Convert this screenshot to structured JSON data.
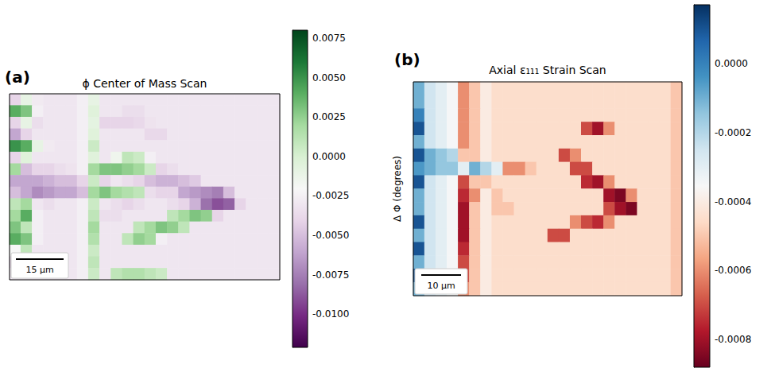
{
  "chart_data": [
    {
      "type": "heatmap",
      "panel": "(a)",
      "title": "ϕ Center of Mass Scan",
      "scale_bar": "15 µm",
      "tick_labels": false,
      "color_range": [
        -0.0121,
        0.008
      ],
      "color_ticks": [
        {
          "value": 0.0075,
          "label": "0.0075"
        },
        {
          "value": 0.005,
          "label": "0.0050"
        },
        {
          "value": 0.0025,
          "label": "0.0025"
        },
        {
          "value": 0,
          "label": "0.0000"
        },
        -0.0025,
        {
          "value": -0.005,
          "label": "-0.0050"
        },
        -0.0075,
        {
          "value": -0.01,
          "label": "-0.0100"
        }
      ],
      "color": [
        "#40004b",
        "#762a83",
        "#9970ab",
        "#c2a5cf",
        "#e7d4e8",
        "#f7f7f7",
        "#d9f0d3",
        "#a6dba0",
        "#5aae61",
        "#1b7837",
        "#00441b"
      ],
      "cells": [
        [
          -0.004,
          -0.001,
          -0.0028,
          -0.003,
          -0.003,
          -0.003,
          -0.0025,
          -0.001,
          -0.003,
          -0.003,
          -0.003,
          -0.003,
          -0.003,
          -0.003,
          -0.003,
          -0.003,
          -0.003,
          -0.003,
          -0.003,
          -0.003,
          -0.003,
          -0.003,
          -0.003,
          -0.003
        ],
        [
          0.004,
          0.003,
          -0.0025,
          -0.003,
          -0.003,
          -0.003,
          -0.0025,
          -0.0005,
          -0.003,
          -0.003,
          -0.0035,
          -0.0035,
          -0.003,
          -0.003,
          -0.003,
          -0.003,
          -0.003,
          -0.003,
          -0.003,
          -0.003,
          -0.003,
          -0.003,
          -0.003,
          -0.003
        ],
        [
          -0.004,
          -0.001,
          -0.0035,
          -0.003,
          -0.003,
          -0.003,
          -0.0025,
          -0.0008,
          -0.004,
          -0.004,
          -0.004,
          -0.0038,
          -0.0032,
          -0.003,
          -0.003,
          -0.003,
          -0.003,
          -0.003,
          -0.003,
          -0.003,
          -0.003,
          -0.003,
          -0.003,
          -0.003
        ],
        [
          -0.006,
          -0.004,
          -0.003,
          -0.003,
          -0.003,
          -0.003,
          -0.0025,
          -0.0005,
          -0.003,
          -0.003,
          -0.003,
          -0.003,
          -0.0038,
          -0.0038,
          -0.003,
          -0.003,
          -0.003,
          -0.003,
          -0.003,
          -0.003,
          -0.003,
          -0.003,
          -0.003,
          -0.003
        ],
        [
          0.005,
          0.004,
          -0.001,
          -0.0028,
          -0.003,
          -0.003,
          -0.0025,
          0.0005,
          -0.003,
          -0.003,
          -0.003,
          -0.003,
          -0.003,
          -0.003,
          -0.003,
          -0.003,
          -0.003,
          -0.003,
          -0.003,
          -0.003,
          -0.003,
          -0.003,
          -0.003,
          -0.003
        ],
        [
          -0.004,
          -0.0005,
          -0.003,
          -0.003,
          -0.003,
          -0.003,
          -0.0025,
          -0.0005,
          -0.003,
          -0.0015,
          0.001,
          0.0005,
          -0.0025,
          -0.003,
          -0.003,
          -0.003,
          -0.003,
          -0.003,
          -0.003,
          -0.003,
          -0.003,
          -0.003,
          -0.003,
          -0.003
        ],
        [
          0.002,
          -0.005,
          -0.004,
          -0.004,
          -0.0035,
          -0.0032,
          -0.0025,
          0.002,
          0.003,
          0.003,
          0.0025,
          0.002,
          0.0005,
          -0.004,
          -0.0035,
          -0.003,
          -0.003,
          -0.003,
          -0.003,
          -0.003,
          -0.003,
          -0.003,
          -0.003,
          -0.003
        ],
        [
          -0.006,
          -0.006,
          -0.006,
          -0.0055,
          -0.005,
          -0.005,
          -0.004,
          0.0005,
          -0.004,
          -0.003,
          -0.0035,
          -0.004,
          -0.005,
          -0.0055,
          -0.0055,
          -0.005,
          -0.0045,
          -0.003,
          -0.003,
          -0.003,
          -0.003,
          -0.003,
          -0.003,
          -0.003
        ],
        [
          -0.005,
          -0.006,
          -0.007,
          -0.0065,
          -0.006,
          -0.006,
          -0.005,
          0.002,
          0.003,
          0.002,
          0.0015,
          0.001,
          -0.0035,
          -0.004,
          -0.004,
          -0.006,
          -0.0065,
          -0.007,
          -0.0075,
          -0.005,
          -0.003,
          -0.003,
          -0.003,
          -0.003
        ],
        [
          0.001,
          0.002,
          -0.003,
          -0.0035,
          -0.003,
          -0.003,
          -0.0025,
          0.0005,
          -0.003,
          -0.0035,
          -0.004,
          -0.0035,
          -0.003,
          -0.003,
          -0.0035,
          -0.004,
          -0.0055,
          -0.008,
          -0.009,
          -0.0085,
          -0.004,
          -0.003,
          -0.003,
          -0.003
        ],
        [
          0.002,
          0.004,
          -0.0025,
          -0.003,
          -0.003,
          -0.003,
          -0.0025,
          0.001,
          -0.0035,
          -0.0035,
          -0.003,
          -0.003,
          -0.003,
          -0.003,
          0.001,
          0.002,
          0.003,
          0.0025,
          -0.004,
          -0.003,
          -0.003,
          -0.003,
          -0.003,
          -0.003
        ],
        [
          0.003,
          0.001,
          -0.0025,
          -0.003,
          -0.003,
          -0.003,
          -0.0025,
          0.002,
          -0.003,
          -0.003,
          -0.003,
          0.001,
          0.002,
          0.003,
          0.0025,
          0.001,
          -0.003,
          -0.003,
          -0.003,
          -0.003,
          -0.003,
          -0.003,
          -0.003,
          -0.003
        ],
        [
          0.004,
          0.003,
          -0.0025,
          -0.003,
          -0.003,
          -0.003,
          -0.0025,
          0.0015,
          -0.003,
          -0.003,
          0.001,
          0.0025,
          0.002,
          -0.0025,
          -0.003,
          -0.003,
          -0.003,
          -0.003,
          -0.003,
          -0.003,
          -0.003,
          -0.003,
          -0.003,
          -0.003
        ],
        [
          -0.002,
          0.001,
          -0.003,
          -0.003,
          -0.003,
          -0.003,
          -0.0025,
          0.0005,
          -0.003,
          -0.003,
          -0.003,
          -0.003,
          -0.003,
          -0.003,
          -0.003,
          -0.003,
          -0.003,
          -0.003,
          -0.003,
          -0.003,
          -0.003,
          -0.003,
          -0.003,
          -0.003
        ],
        [
          -0.004,
          -0.002,
          -0.003,
          -0.003,
          -0.003,
          -0.003,
          -0.0025,
          0.001,
          -0.003,
          -0.003,
          -0.003,
          -0.003,
          -0.003,
          -0.003,
          -0.003,
          -0.003,
          -0.003,
          -0.003,
          -0.003,
          -0.003,
          -0.003,
          -0.003,
          -0.003,
          -0.003
        ],
        [
          -0.003,
          -0.003,
          -0.003,
          -0.003,
          -0.003,
          -0.003,
          -0.0025,
          0.0005,
          -0.003,
          0.001,
          0.0015,
          0.0015,
          0.001,
          0.0005,
          -0.003,
          -0.003,
          -0.003,
          -0.003,
          -0.003,
          -0.003,
          -0.003,
          -0.003,
          -0.003,
          -0.003
        ]
      ]
    },
    {
      "type": "heatmap",
      "panel": "(b)",
      "title": "Axial ε₁₁₁ Strain Scan",
      "ylabel": "Δ Φ (degrees)",
      "scale_bar": "10 µm",
      "tick_labels": false,
      "color_range": [
        -0.00088,
        0.00017
      ],
      "color_ticks": [
        {
          "value": 0,
          "label": "0.0000"
        },
        -0.0002,
        -0.0004,
        -0.0006,
        -0.0008
      ],
      "color": [
        "#67001f",
        "#b2182b",
        "#d6604d",
        "#f4a582",
        "#fddbc7",
        "#f7f7f7",
        "#d1e5f0",
        "#92c5de",
        "#4393c3",
        "#2166ac",
        "#053061"
      ],
      "cells": [
        [
          -0.0001,
          -0.00025,
          -0.0003,
          -0.00035,
          -0.0006,
          -0.0005,
          -0.0004,
          -0.00045,
          -0.00045,
          -0.00045,
          -0.00045,
          -0.00045,
          -0.00045,
          -0.00045,
          -0.00045,
          -0.00045,
          -0.00045,
          -0.00045,
          -0.00045,
          -0.00045,
          -0.00045,
          -0.00045,
          -0.00045,
          -0.0005
        ],
        [
          -0.0001,
          -0.00025,
          -0.0003,
          -0.00035,
          -0.0006,
          -0.0005,
          -0.0004,
          -0.00045,
          -0.00045,
          -0.00045,
          -0.00045,
          -0.00045,
          -0.00045,
          -0.00045,
          -0.00045,
          -0.00045,
          -0.00045,
          -0.00045,
          -0.00045,
          -0.00045,
          -0.00045,
          -0.00045,
          -0.00045,
          -0.0005
        ],
        [
          0,
          -0.00025,
          -0.0003,
          -0.00035,
          -0.0006,
          -0.0005,
          -0.0004,
          -0.00045,
          -0.00045,
          -0.00045,
          -0.00045,
          -0.00045,
          -0.00045,
          -0.00045,
          -0.00045,
          -0.00045,
          -0.00045,
          -0.00045,
          -0.00045,
          -0.00045,
          -0.00045,
          -0.00045,
          -0.00045,
          -0.0005
        ],
        [
          0.0001,
          -0.00025,
          -0.0003,
          -0.00035,
          -0.0006,
          -0.0005,
          -0.0004,
          -0.00045,
          -0.00045,
          -0.00045,
          -0.00045,
          -0.00045,
          -0.00045,
          -0.00045,
          -0.00045,
          -0.0007,
          -0.0008,
          -0.0006,
          -0.00045,
          -0.00045,
          -0.00045,
          -0.00045,
          -0.00045,
          -0.0005
        ],
        [
          -0.0001,
          -0.00025,
          -0.0003,
          -0.00035,
          -0.0006,
          -0.0005,
          -0.0004,
          -0.00045,
          -0.00045,
          -0.00045,
          -0.00045,
          -0.00045,
          -0.00045,
          -0.00045,
          -0.00045,
          -0.00045,
          -0.00045,
          -0.00045,
          -0.00045,
          -0.00045,
          -0.00045,
          -0.00045,
          -0.00045,
          -0.0005
        ],
        [
          0.0001,
          -0.0001,
          -0.00015,
          -0.0002,
          -0.0005,
          -0.0005,
          -0.0004,
          -0.00045,
          -0.00045,
          -0.00045,
          -0.00045,
          -0.00045,
          -0.00045,
          -0.0007,
          -0.0006,
          -0.00045,
          -0.00045,
          -0.00045,
          -0.00045,
          -0.00045,
          -0.00045,
          -0.00045,
          -0.00045,
          -0.0005
        ],
        [
          -5e-05,
          -0.0001,
          -0.00015,
          -0.00015,
          -0.0003,
          -0.0001,
          -0.0002,
          -0.0003,
          -0.0006,
          -0.0006,
          -0.0005,
          -0.00045,
          -0.00045,
          -0.00045,
          -0.0007,
          -0.0007,
          -0.00045,
          -0.00045,
          -0.00045,
          -0.00045,
          -0.00045,
          -0.00045,
          -0.00045,
          -0.0005
        ],
        [
          0.0001,
          -0.00025,
          -0.0003,
          -0.00035,
          -0.0007,
          -0.0005,
          -0.0005,
          -0.00045,
          -0.00045,
          -0.00045,
          -0.00045,
          -0.00045,
          -0.00045,
          -0.00045,
          -0.00045,
          -0.00075,
          -0.0008,
          -0.0006,
          -0.00045,
          -0.00045,
          -0.00045,
          -0.00045,
          -0.00045,
          -0.0005
        ],
        [
          -0.0001,
          -0.00025,
          -0.0003,
          -0.00035,
          -0.00075,
          -0.0006,
          -0.0004,
          -0.0005,
          -0.00045,
          -0.00045,
          -0.00045,
          -0.00045,
          -0.00045,
          -0.00045,
          -0.00045,
          -0.00045,
          -0.00045,
          -0.0008,
          -0.00085,
          -0.0006,
          -0.00045,
          -0.00045,
          -0.00045,
          -0.0005
        ],
        [
          -0.0001,
          -0.00025,
          -0.0003,
          -0.00035,
          -0.0008,
          -0.0005,
          -0.0004,
          -0.0005,
          -0.0005,
          -0.00045,
          -0.00045,
          -0.00045,
          -0.00045,
          -0.00045,
          -0.00045,
          -0.00045,
          -0.00045,
          -0.0007,
          -0.0008,
          -0.00085,
          -0.00045,
          -0.00045,
          -0.00045,
          -0.0005
        ],
        [
          0.0001,
          -0.00025,
          -0.0003,
          -0.00035,
          -0.0008,
          -0.0005,
          -0.0004,
          -0.00045,
          -0.00045,
          -0.00045,
          -0.00045,
          -0.00045,
          -0.00045,
          -0.00045,
          -0.0006,
          -0.0007,
          -0.00075,
          -0.0006,
          -0.00045,
          -0.00045,
          -0.00045,
          -0.00045,
          -0.00045,
          -0.0005
        ],
        [
          -0.0001,
          -0.00025,
          -0.0003,
          -0.00035,
          -0.0008,
          -0.0005,
          -0.0004,
          -0.00045,
          -0.00045,
          -0.00045,
          -0.00045,
          -0.00045,
          -0.0007,
          -0.0007,
          -0.00045,
          -0.00045,
          -0.00045,
          -0.00045,
          -0.00045,
          -0.00045,
          -0.00045,
          -0.00045,
          -0.00045,
          -0.0005
        ],
        [
          0.0001,
          -0.00025,
          -0.0003,
          -0.00035,
          -0.00075,
          -0.0005,
          -0.0004,
          -0.00045,
          -0.00045,
          -0.00045,
          -0.00045,
          -0.00045,
          -0.00045,
          -0.00045,
          -0.00045,
          -0.00045,
          -0.00045,
          -0.00045,
          -0.00045,
          -0.00045,
          -0.00045,
          -0.00045,
          -0.00045,
          -0.0005
        ],
        [
          -0.0001,
          -0.00025,
          -0.0003,
          -0.00035,
          -0.0007,
          -0.0005,
          -0.0004,
          -0.00045,
          -0.00045,
          -0.00045,
          -0.00045,
          -0.00045,
          -0.00045,
          -0.00045,
          -0.00045,
          -0.00045,
          -0.00045,
          -0.00045,
          -0.00045,
          -0.00045,
          -0.00045,
          -0.00045,
          -0.00045,
          -0.0005
        ],
        [
          0.0001,
          -0.00025,
          -0.0003,
          -0.00035,
          -0.0007,
          -0.0005,
          -0.0004,
          -0.00045,
          -0.00045,
          -0.00045,
          -0.00045,
          -0.00045,
          -0.00045,
          -0.00045,
          -0.00045,
          -0.00045,
          -0.00045,
          -0.00045,
          -0.00045,
          -0.00045,
          -0.00045,
          -0.00045,
          -0.00045,
          -0.0005
        ],
        [
          -0.0001,
          -0.00025,
          -0.0003,
          -0.00035,
          -0.0006,
          -0.0005,
          -0.0004,
          -0.00045,
          -0.00045,
          -0.00045,
          -0.00045,
          -0.00045,
          -0.00045,
          -0.00045,
          -0.00045,
          -0.00045,
          -0.00045,
          -0.00045,
          -0.00045,
          -0.00045,
          -0.00045,
          -0.00045,
          -0.00045,
          -0.0005
        ]
      ]
    }
  ]
}
